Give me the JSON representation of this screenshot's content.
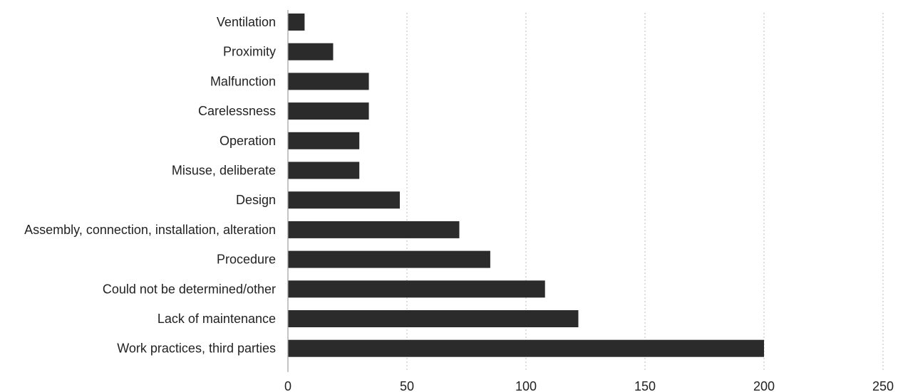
{
  "chart_data": {
    "type": "bar",
    "orientation": "horizontal",
    "title": "",
    "xlabel": "",
    "ylabel": "",
    "categories": [
      "Ventilation",
      "Proximity",
      "Malfunction",
      "Carelessness",
      "Operation",
      "Misuse, deliberate",
      "Design",
      "Assembly, connection, installation, alteration",
      "Procedure",
      "Could not be determined/other",
      "Lack of maintenance",
      "Work practices, third parties"
    ],
    "values": [
      7,
      19,
      34,
      34,
      30,
      30,
      47,
      72,
      85,
      108,
      122,
      200
    ],
    "xlim": [
      0,
      250
    ],
    "xticks": [
      0,
      50,
      100,
      150,
      200,
      250
    ],
    "grid": "vertical dotted",
    "legend": "none",
    "bar_color": "#2b2b2b"
  }
}
